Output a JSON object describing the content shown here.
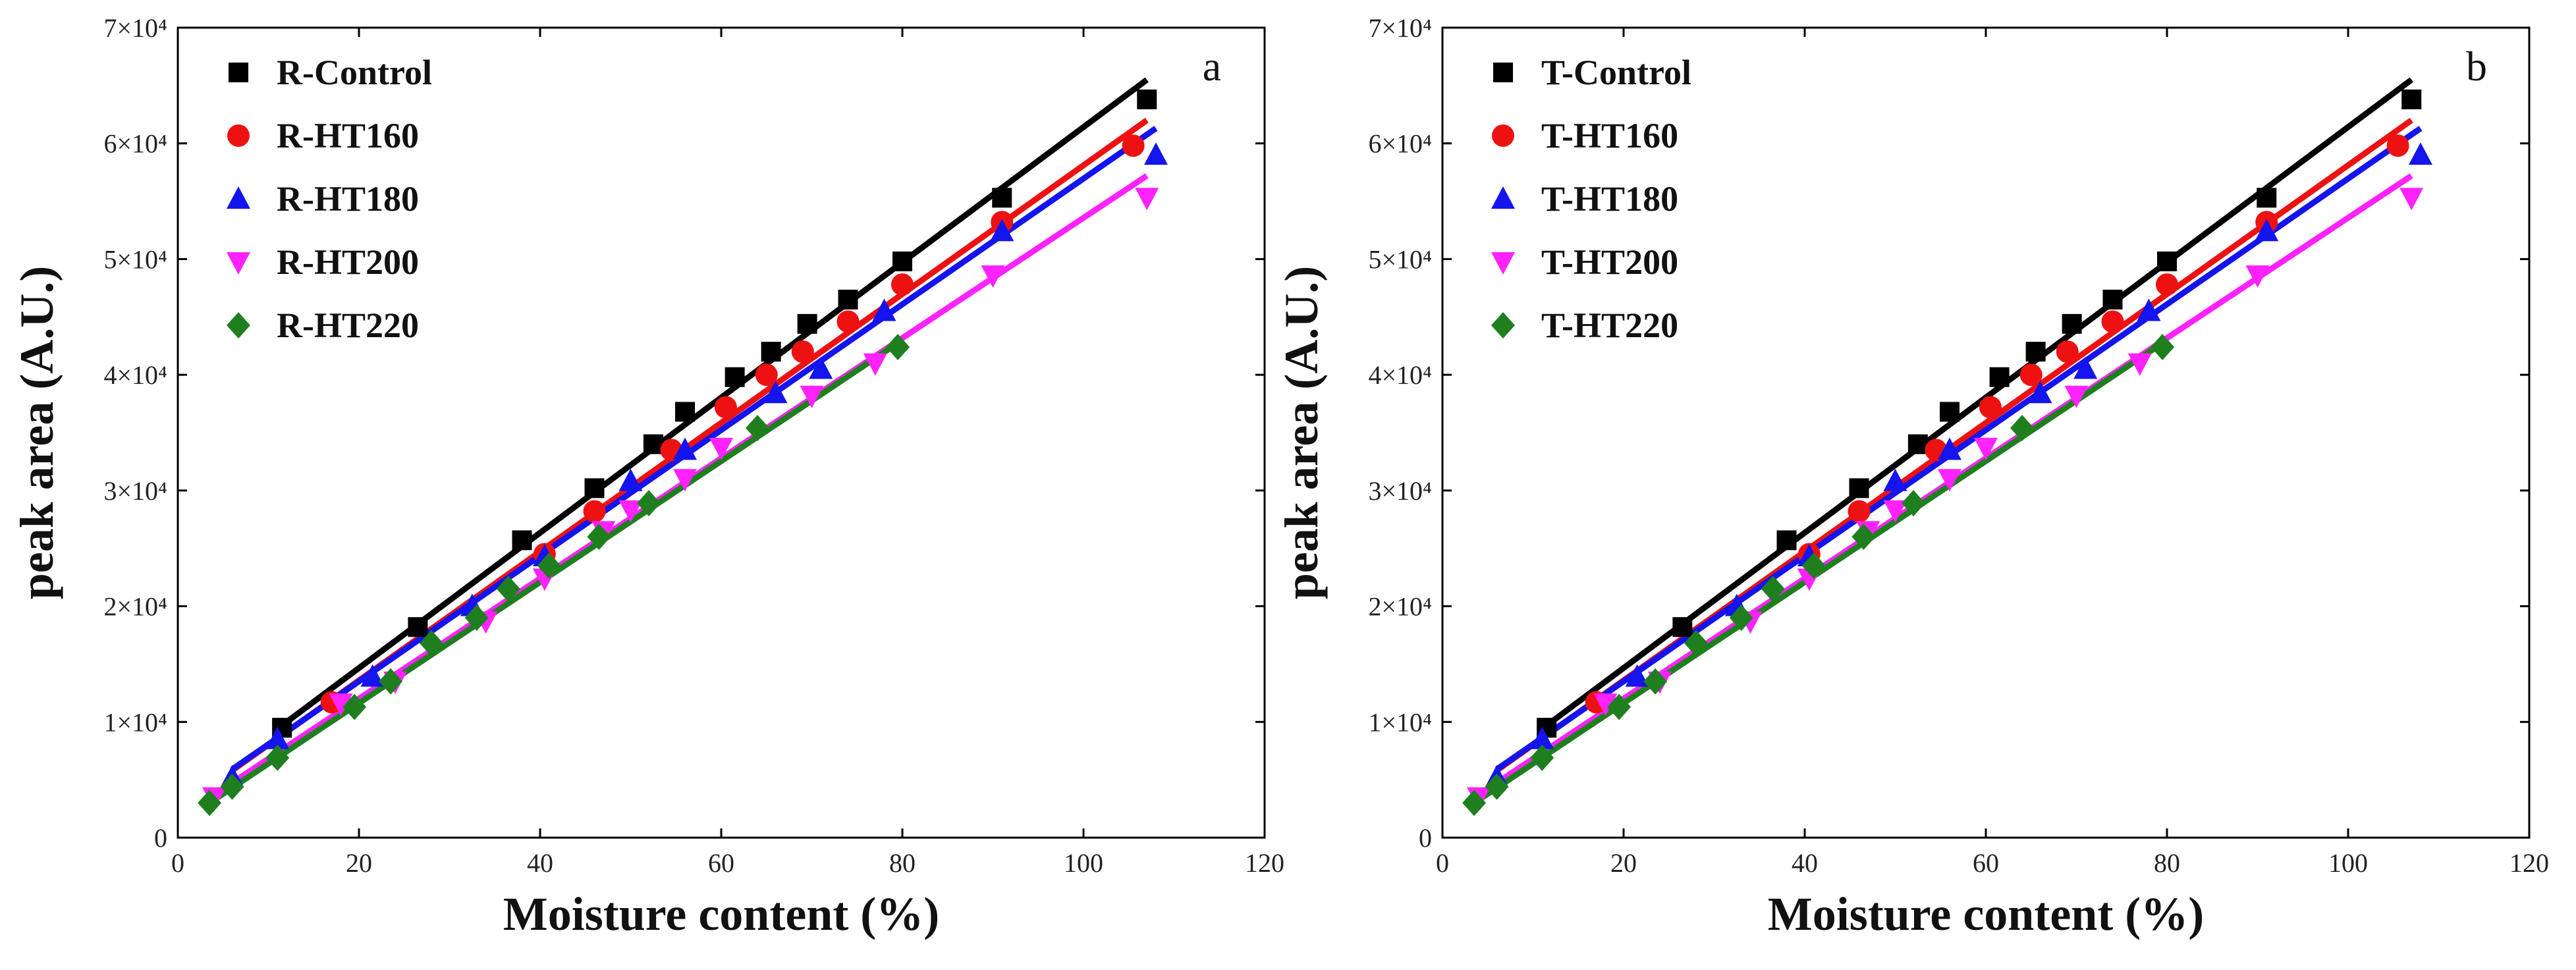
{
  "chart_data": [
    {
      "type": "scatter",
      "panel_label": "a",
      "xlabel": "Moisture content (%)",
      "ylabel": "peak area (A.U.)",
      "xlim": [
        0,
        120
      ],
      "ylim": [
        0,
        70000
      ],
      "xticks": [
        0,
        20,
        40,
        60,
        80,
        100,
        120
      ],
      "yticks": [
        0,
        10000,
        20000,
        30000,
        40000,
        50000,
        60000,
        70000
      ],
      "ytick_labels": [
        "0",
        "1×10⁴",
        "2×10⁴",
        "3×10⁴",
        "4×10⁴",
        "5×10⁴",
        "6×10⁴",
        "7×10⁴"
      ],
      "series": [
        {
          "name": "R-Control",
          "color": "#000000",
          "marker": "square",
          "x": [
            11.5,
            26.5,
            38,
            46,
            52.5,
            56,
            61.5,
            65.5,
            69.5,
            74,
            80,
            91,
            107
          ],
          "y": [
            9500,
            18200,
            25700,
            30200,
            34000,
            36800,
            39800,
            42000,
            44400,
            46500,
            49800,
            55300,
            63800
          ],
          "fit": [
            [
              11,
              9400
            ],
            [
              107,
              65500
            ]
          ]
        },
        {
          "name": "R-HT160",
          "color": "#ee1111",
          "marker": "circle",
          "x": [
            17,
            40.5,
            46,
            54.5,
            60.5,
            65,
            69,
            74,
            80,
            91,
            105.5
          ],
          "y": [
            11700,
            24500,
            28200,
            33500,
            37200,
            40000,
            42000,
            44600,
            47800,
            53200,
            59800
          ],
          "fit": [
            [
              6,
              5800
            ],
            [
              107,
              62000
            ]
          ]
        },
        {
          "name": "R-HT180",
          "color": "#1414ee",
          "marker": "triangle-up",
          "x": [
            6,
            11,
            21.5,
            32.5,
            40.5,
            50,
            56,
            66,
            71,
            78,
            91,
            108
          ],
          "y": [
            5200,
            8500,
            13900,
            20000,
            24300,
            30800,
            33500,
            38400,
            40500,
            45500,
            52400,
            59000
          ],
          "fit": [
            [
              6,
              5900
            ],
            [
              108,
              61300
            ]
          ]
        },
        {
          "name": "R-HT200",
          "color": "#ff22ff",
          "marker": "triangle-down",
          "x": [
            4,
            18,
            24,
            34,
            40.5,
            47,
            50,
            56,
            60,
            70,
            77,
            90,
            107
          ],
          "y": [
            3500,
            11600,
            13500,
            18700,
            22400,
            26500,
            28300,
            31000,
            33700,
            38200,
            41000,
            48600,
            55300
          ],
          "fit": [
            [
              4,
              3700
            ],
            [
              107,
              57200
            ]
          ]
        },
        {
          "name": "R-HT220",
          "color": "#1f7f1f",
          "marker": "diamond",
          "x": [
            3.5,
            6,
            11,
            19.5,
            23.5,
            28,
            33,
            36.5,
            41,
            46.5,
            52,
            64,
            79.5
          ],
          "y": [
            3000,
            4400,
            6900,
            11300,
            13500,
            16800,
            19000,
            21500,
            23500,
            26000,
            28900,
            35400,
            42400
          ],
          "fit": [
            [
              3.5,
              3000
            ],
            [
              80,
              43000
            ]
          ]
        }
      ]
    },
    {
      "type": "scatter",
      "panel_label": "b",
      "xlabel": "Moisture content (%)",
      "ylabel": "peak area (A.U.)",
      "xlim": [
        0,
        120
      ],
      "ylim": [
        0,
        70000
      ],
      "xticks": [
        0,
        20,
        40,
        60,
        80,
        100,
        120
      ],
      "yticks": [
        0,
        10000,
        20000,
        30000,
        40000,
        50000,
        60000,
        70000
      ],
      "ytick_labels": [
        "0",
        "1×10⁴",
        "2×10⁴",
        "3×10⁴",
        "4×10⁴",
        "5×10⁴",
        "6×10⁴",
        "7×10⁴"
      ],
      "series": [
        {
          "name": "T-Control",
          "color": "#000000",
          "marker": "square",
          "x": [
            11.5,
            26.5,
            38,
            46,
            52.5,
            56,
            61.5,
            65.5,
            69.5,
            74,
            80,
            91,
            107
          ],
          "y": [
            9500,
            18200,
            25700,
            30200,
            34000,
            36800,
            39800,
            42000,
            44400,
            46500,
            49800,
            55300,
            63800
          ],
          "fit": [
            [
              11,
              9400
            ],
            [
              107,
              65500
            ]
          ]
        },
        {
          "name": "T-HT160",
          "color": "#ee1111",
          "marker": "circle",
          "x": [
            17,
            40.5,
            46,
            54.5,
            60.5,
            65,
            69,
            74,
            80,
            91,
            105.5
          ],
          "y": [
            11700,
            24500,
            28200,
            33500,
            37200,
            40000,
            42000,
            44600,
            47800,
            53200,
            59800
          ],
          "fit": [
            [
              6,
              5800
            ],
            [
              107,
              62000
            ]
          ]
        },
        {
          "name": "T-HT180",
          "color": "#1414ee",
          "marker": "triangle-up",
          "x": [
            6,
            11,
            21.5,
            32.5,
            40.5,
            50,
            56,
            66,
            71,
            78,
            91,
            108
          ],
          "y": [
            5200,
            8500,
            13900,
            20000,
            24300,
            30800,
            33500,
            38400,
            40500,
            45500,
            52400,
            59000
          ],
          "fit": [
            [
              6,
              5900
            ],
            [
              108,
              61300
            ]
          ]
        },
        {
          "name": "T-HT200",
          "color": "#ff22ff",
          "marker": "triangle-down",
          "x": [
            4,
            18,
            24,
            34,
            40.5,
            47,
            50,
            56,
            60,
            70,
            77,
            90,
            107
          ],
          "y": [
            3500,
            11600,
            13500,
            18700,
            22400,
            26500,
            28300,
            31000,
            33700,
            38200,
            41000,
            48600,
            55300
          ],
          "fit": [
            [
              4,
              3700
            ],
            [
              107,
              57200
            ]
          ]
        },
        {
          "name": "T-HT220",
          "color": "#1f7f1f",
          "marker": "diamond",
          "x": [
            3.5,
            6,
            11,
            19.5,
            23.5,
            28,
            33,
            36.5,
            41,
            46.5,
            52,
            64,
            79.5
          ],
          "y": [
            3000,
            4400,
            6900,
            11300,
            13500,
            16800,
            19000,
            21500,
            23500,
            26000,
            28900,
            35400,
            42400
          ],
          "fit": [
            [
              3.5,
              3000
            ],
            [
              80,
              43000
            ]
          ]
        }
      ]
    }
  ]
}
